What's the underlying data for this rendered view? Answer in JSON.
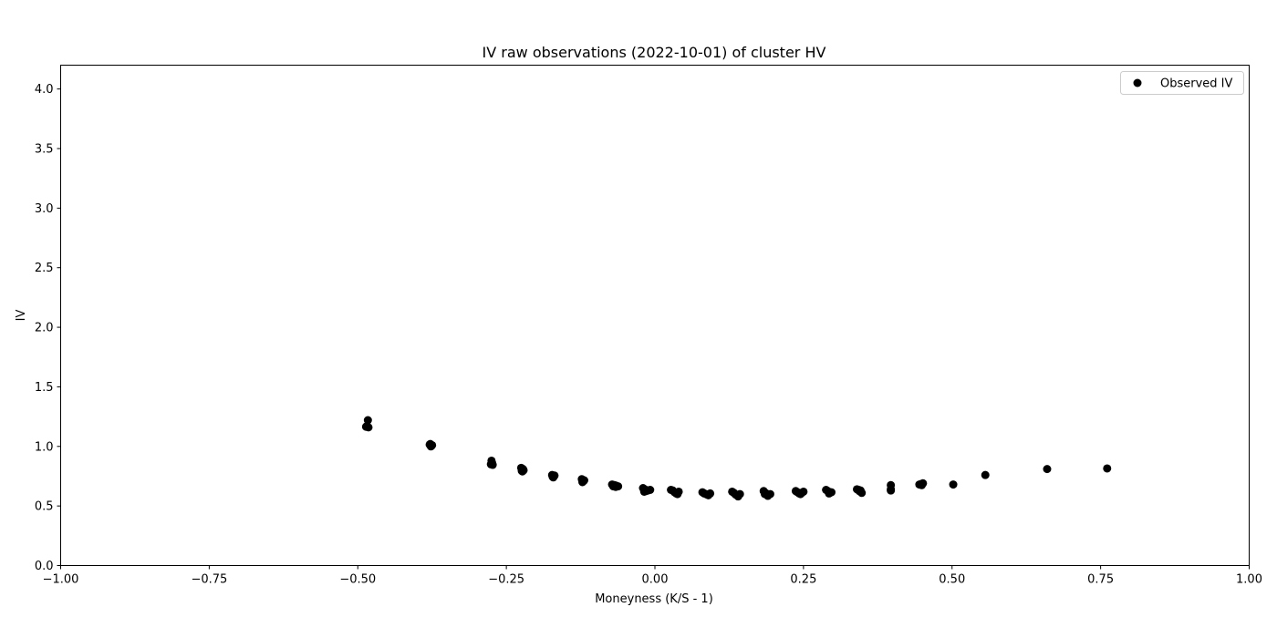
{
  "chart_data": {
    "type": "scatter",
    "title": "IV raw observations (2022-10-01) of cluster HV",
    "xlabel": "Moneyness (K/S - 1)",
    "ylabel": "IV",
    "xlim": [
      -1.0,
      1.0
    ],
    "ylim": [
      0.0,
      4.2
    ],
    "xticks": [
      -1.0,
      -0.75,
      -0.5,
      -0.25,
      0.0,
      0.25,
      0.5,
      0.75,
      1.0
    ],
    "xtick_labels": [
      "−1.00",
      "−0.75",
      "−0.50",
      "−0.25",
      "0.00",
      "0.25",
      "0.50",
      "0.75",
      "1.00"
    ],
    "yticks": [
      0.0,
      0.5,
      1.0,
      1.5,
      2.0,
      2.5,
      3.0,
      3.5,
      4.0
    ],
    "ytick_labels": [
      "0.0",
      "0.5",
      "1.0",
      "1.5",
      "2.0",
      "2.5",
      "3.0",
      "3.5",
      "4.0"
    ],
    "grid": false,
    "legend_position": "top-right",
    "marker_color": "#000000",
    "series": [
      {
        "name": "Observed IV",
        "points": [
          [
            -0.483,
            1.22
          ],
          [
            -0.485,
            1.17
          ],
          [
            -0.482,
            1.16
          ],
          [
            -0.486,
            1.165
          ],
          [
            -0.378,
            1.02
          ],
          [
            -0.375,
            1.01
          ],
          [
            -0.377,
            1.0
          ],
          [
            -0.379,
            1.015
          ],
          [
            -0.376,
            1.005
          ],
          [
            -0.275,
            0.88
          ],
          [
            -0.274,
            0.86
          ],
          [
            -0.276,
            0.85
          ],
          [
            -0.273,
            0.845
          ],
          [
            -0.225,
            0.82
          ],
          [
            -0.222,
            0.81
          ],
          [
            -0.224,
            0.795
          ],
          [
            -0.221,
            0.8
          ],
          [
            -0.223,
            0.79
          ],
          [
            -0.173,
            0.76
          ],
          [
            -0.17,
            0.75
          ],
          [
            -0.172,
            0.745
          ],
          [
            -0.169,
            0.755
          ],
          [
            -0.171,
            0.74
          ],
          [
            -0.123,
            0.725
          ],
          [
            -0.12,
            0.71
          ],
          [
            -0.122,
            0.7
          ],
          [
            -0.119,
            0.715
          ],
          [
            -0.121,
            0.705
          ],
          [
            -0.072,
            0.68
          ],
          [
            -0.068,
            0.675
          ],
          [
            -0.07,
            0.665
          ],
          [
            -0.065,
            0.67
          ],
          [
            -0.062,
            0.665
          ],
          [
            -0.066,
            0.66
          ],
          [
            -0.02,
            0.65
          ],
          [
            -0.017,
            0.64
          ],
          [
            -0.015,
            0.625
          ],
          [
            -0.012,
            0.63
          ],
          [
            -0.008,
            0.635
          ],
          [
            -0.018,
            0.62
          ],
          [
            0.027,
            0.635
          ],
          [
            0.03,
            0.63
          ],
          [
            0.033,
            0.615
          ],
          [
            0.036,
            0.605
          ],
          [
            0.04,
            0.62
          ],
          [
            0.038,
            0.6
          ],
          [
            0.08,
            0.615
          ],
          [
            0.083,
            0.605
          ],
          [
            0.086,
            0.6
          ],
          [
            0.09,
            0.59
          ],
          [
            0.093,
            0.605
          ],
          [
            0.088,
            0.595
          ],
          [
            0.13,
            0.62
          ],
          [
            0.133,
            0.61
          ],
          [
            0.136,
            0.595
          ],
          [
            0.14,
            0.58
          ],
          [
            0.143,
            0.6
          ],
          [
            0.138,
            0.59
          ],
          [
            0.183,
            0.625
          ],
          [
            0.186,
            0.61
          ],
          [
            0.188,
            0.595
          ],
          [
            0.19,
            0.585
          ],
          [
            0.194,
            0.6
          ],
          [
            0.185,
            0.6
          ],
          [
            0.237,
            0.625
          ],
          [
            0.24,
            0.615
          ],
          [
            0.243,
            0.605
          ],
          [
            0.247,
            0.61
          ],
          [
            0.25,
            0.62
          ],
          [
            0.245,
            0.6
          ],
          [
            0.288,
            0.635
          ],
          [
            0.291,
            0.625
          ],
          [
            0.294,
            0.61
          ],
          [
            0.297,
            0.615
          ],
          [
            0.293,
            0.605
          ],
          [
            0.34,
            0.64
          ],
          [
            0.343,
            0.635
          ],
          [
            0.346,
            0.63
          ],
          [
            0.348,
            0.61
          ],
          [
            0.344,
            0.625
          ],
          [
            0.397,
            0.675
          ],
          [
            0.397,
            0.64
          ],
          [
            0.397,
            0.63
          ],
          [
            0.445,
            0.68
          ],
          [
            0.448,
            0.685
          ],
          [
            0.451,
            0.69
          ],
          [
            0.449,
            0.675
          ],
          [
            0.502,
            0.68
          ],
          [
            0.556,
            0.76
          ],
          [
            0.66,
            0.81
          ],
          [
            0.761,
            0.815
          ]
        ]
      }
    ]
  }
}
